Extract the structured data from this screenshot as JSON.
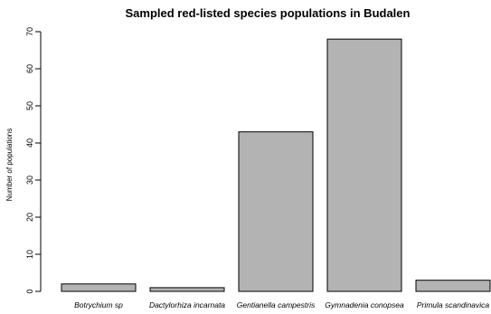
{
  "chart_data": {
    "type": "bar",
    "title": "Sampled red-listed species populations in Budalen",
    "xlabel": "",
    "ylabel": "Number of populations",
    "categories": [
      "Botrychium sp",
      "Dactylorhiza incarnata",
      "Gentianella campestris",
      "Gymnadenia conopsea",
      "Primula scandinavica"
    ],
    "values": [
      2,
      1,
      43,
      68,
      3
    ],
    "ylim": [
      0,
      70
    ],
    "yticks": [
      0,
      10,
      20,
      30,
      40,
      50,
      60,
      70
    ],
    "grid": false,
    "colors": {
      "bar_fill": "#b3b3b3",
      "bar_stroke": "#000000",
      "axis": "#000000",
      "background": "#ffffff"
    }
  }
}
